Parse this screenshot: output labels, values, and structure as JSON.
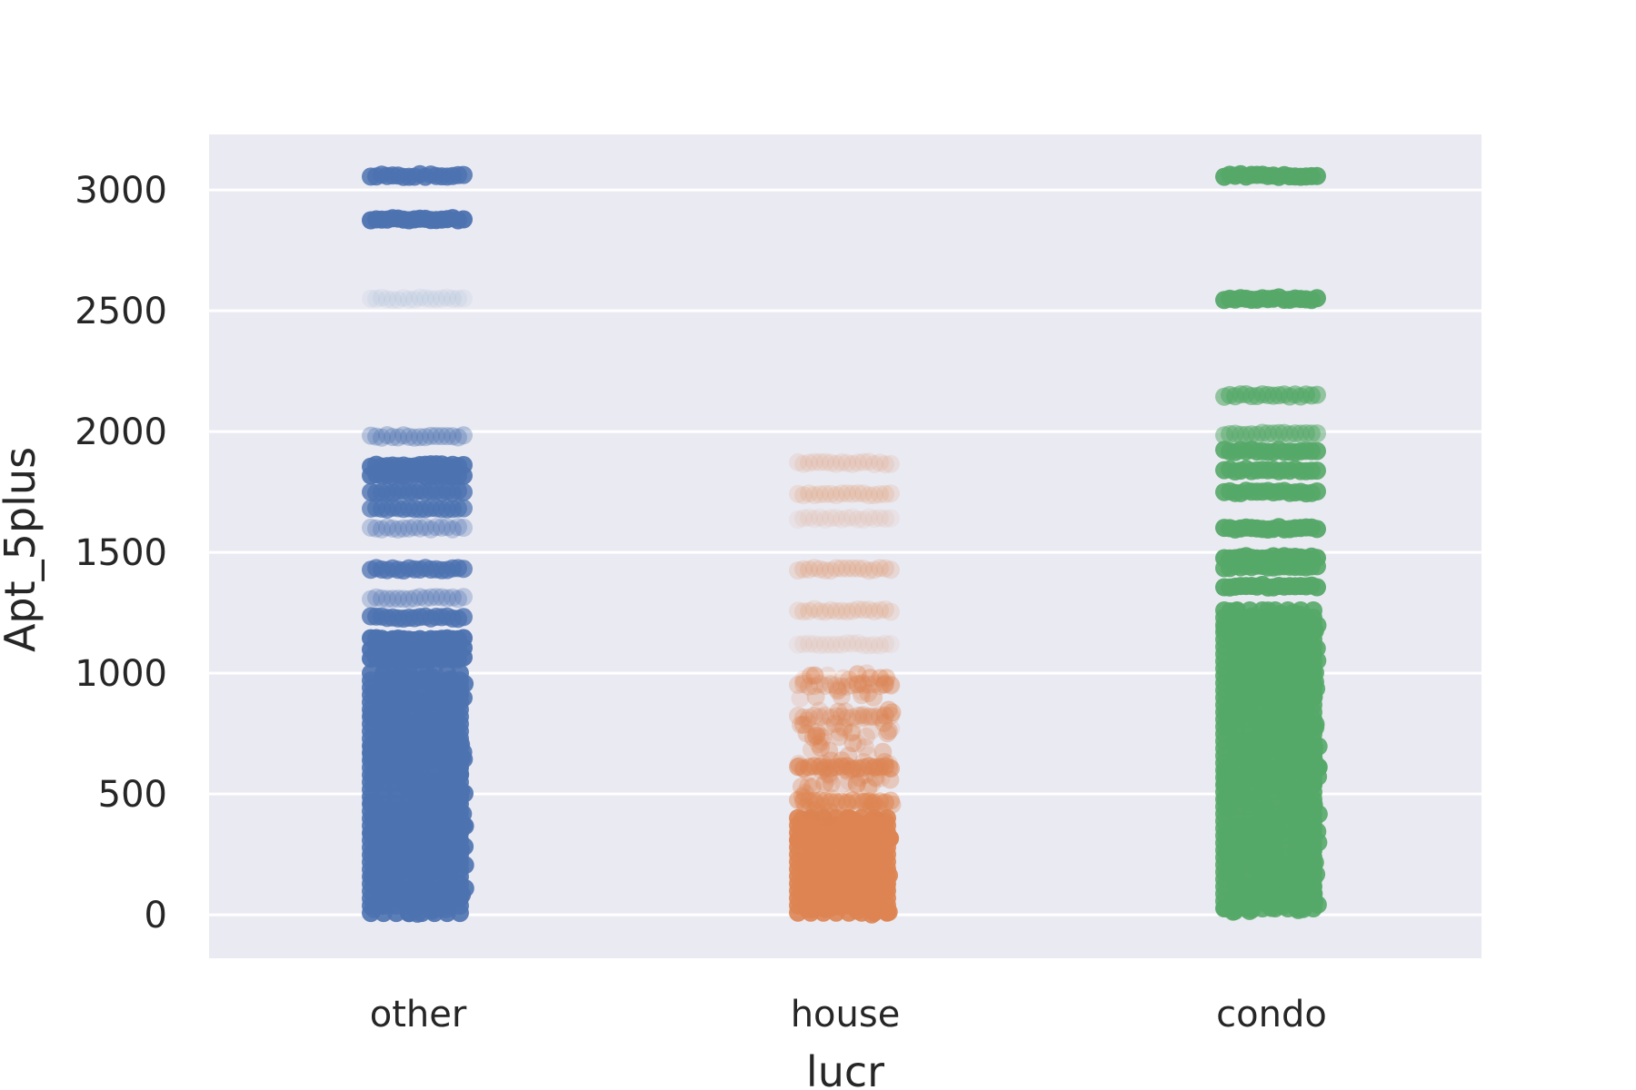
{
  "chart_data": {
    "type": "scatter",
    "subtype": "strip",
    "xlabel": "lucr",
    "ylabel": "Apt_5plus",
    "categories": [
      "other",
      "house",
      "condo"
    ],
    "ylim": [
      -180,
      3230
    ],
    "yticks": [
      0,
      500,
      1000,
      1500,
      2000,
      2500,
      3000
    ],
    "grid": true,
    "background": "#EAEAF2",
    "series": [
      {
        "category": "other",
        "color": "#4C72B0",
        "dense_range": [
          0,
          1000
        ],
        "bands": [
          {
            "value": 3060,
            "alpha": 0.85
          },
          {
            "value": 2880,
            "alpha": 0.95
          },
          {
            "value": 2550,
            "alpha": 0.06
          },
          {
            "value": 1980,
            "alpha": 0.35
          },
          {
            "value": 1860,
            "alpha": 0.9
          },
          {
            "value": 1820,
            "alpha": 0.9
          },
          {
            "value": 1750,
            "alpha": 0.8
          },
          {
            "value": 1680,
            "alpha": 0.7
          },
          {
            "value": 1600,
            "alpha": 0.3
          },
          {
            "value": 1430,
            "alpha": 0.75
          },
          {
            "value": 1310,
            "alpha": 0.3
          },
          {
            "value": 1230,
            "alpha": 0.8
          },
          {
            "value": 1140,
            "alpha": 0.95
          },
          {
            "value": 1100,
            "alpha": 0.95
          },
          {
            "value": 1060,
            "alpha": 0.95
          }
        ]
      },
      {
        "category": "house",
        "color": "#DD8452",
        "dense_range": [
          0,
          400
        ],
        "sparse_range": [
          400,
          1000
        ],
        "bands": [
          {
            "value": 1870,
            "alpha": 0.12
          },
          {
            "value": 1740,
            "alpha": 0.15
          },
          {
            "value": 1640,
            "alpha": 0.08
          },
          {
            "value": 1430,
            "alpha": 0.18
          },
          {
            "value": 1260,
            "alpha": 0.15
          },
          {
            "value": 1120,
            "alpha": 0.08
          },
          {
            "value": 950,
            "alpha": 0.25
          },
          {
            "value": 820,
            "alpha": 0.25
          },
          {
            "value": 610,
            "alpha": 0.55
          },
          {
            "value": 470,
            "alpha": 0.45
          }
        ]
      },
      {
        "category": "condo",
        "color": "#55A868",
        "dense_range": [
          0,
          1260
        ],
        "bands": [
          {
            "value": 3060,
            "alpha": 0.95
          },
          {
            "value": 2550,
            "alpha": 0.95
          },
          {
            "value": 2150,
            "alpha": 0.6
          },
          {
            "value": 1990,
            "alpha": 0.5
          },
          {
            "value": 1920,
            "alpha": 0.9
          },
          {
            "value": 1840,
            "alpha": 0.9
          },
          {
            "value": 1750,
            "alpha": 0.9
          },
          {
            "value": 1600,
            "alpha": 0.95
          },
          {
            "value": 1480,
            "alpha": 0.95
          },
          {
            "value": 1440,
            "alpha": 0.9
          },
          {
            "value": 1360,
            "alpha": 0.95
          }
        ]
      }
    ]
  }
}
